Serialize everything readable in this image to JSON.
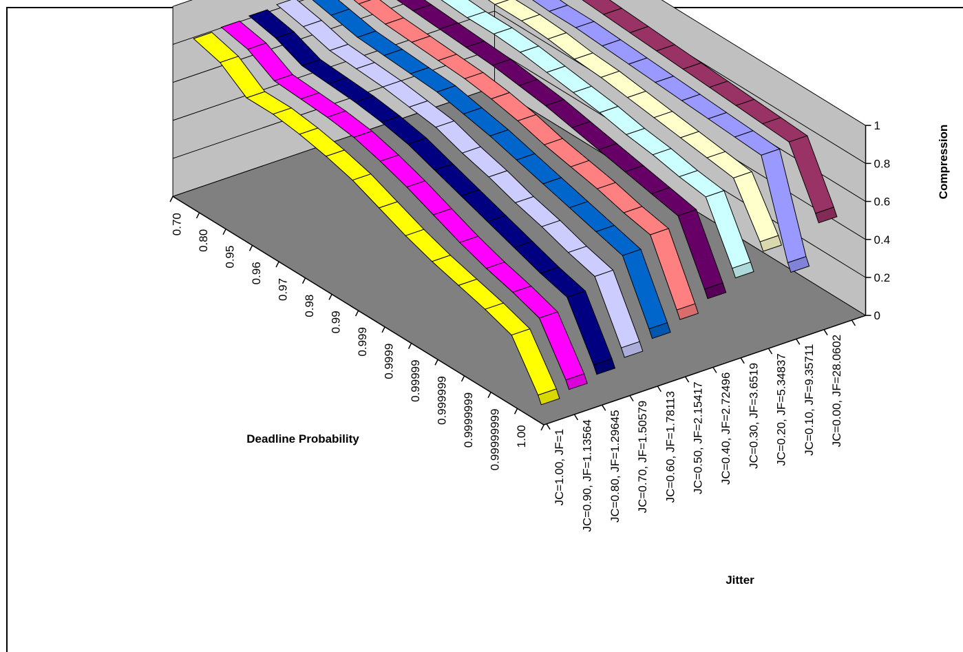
{
  "chart_data": {
    "type": "3d-ribbon-line",
    "xlabel": "Deadline Probability",
    "zlabel": "Jitter",
    "ylabel": "Compression",
    "ylim": [
      0,
      1
    ],
    "yticks": [
      "0",
      "0.2",
      "0.4",
      "0.6",
      "0.8",
      "1"
    ],
    "categories": [
      "0.70",
      "0.80",
      "0.95",
      "0.96",
      "0.97",
      "0.98",
      "0.99",
      "0.999",
      "0.9999",
      "0.99999",
      "0.999999",
      "0.9999999",
      "0.99999999",
      "1.00"
    ],
    "series": [
      {
        "name": "JC=1.00, JF=1",
        "color": "#ffff00",
        "values": [
          0.86,
          0.82,
          0.72,
          0.72,
          0.7,
          0.67,
          0.63,
          0.57,
          0.51,
          0.46,
          0.42,
          0.38,
          0.33,
          0.1
        ]
      },
      {
        "name": "JC=0.90, JF=1.13564",
        "color": "#ff00ff",
        "values": [
          0.87,
          0.84,
          0.76,
          0.75,
          0.74,
          0.72,
          0.68,
          0.63,
          0.57,
          0.51,
          0.46,
          0.42,
          0.37,
          0.13
        ]
      },
      {
        "name": "JC=0.80, JF=1.29645",
        "color": "#000080",
        "values": [
          0.88,
          0.85,
          0.79,
          0.78,
          0.77,
          0.75,
          0.72,
          0.67,
          0.62,
          0.57,
          0.52,
          0.47,
          0.43,
          0.16
        ]
      },
      {
        "name": "JC=0.70, JF=1.50579",
        "color": "#ccccff",
        "values": [
          0.89,
          0.86,
          0.82,
          0.81,
          0.8,
          0.78,
          0.76,
          0.71,
          0.67,
          0.62,
          0.58,
          0.53,
          0.49,
          0.2
        ]
      },
      {
        "name": "JC=0.60, JF=1.78113",
        "color": "#0066cc",
        "values": [
          0.9,
          0.87,
          0.84,
          0.83,
          0.82,
          0.81,
          0.78,
          0.75,
          0.71,
          0.67,
          0.63,
          0.59,
          0.55,
          0.25
        ]
      },
      {
        "name": "JC=0.50, JF=2.15417",
        "color": "#ff8080",
        "values": [
          0.91,
          0.88,
          0.86,
          0.85,
          0.84,
          0.83,
          0.81,
          0.78,
          0.74,
          0.71,
          0.68,
          0.64,
          0.61,
          0.3
        ]
      },
      {
        "name": "JC=0.40, JF=2.72496",
        "color": "#660066",
        "values": [
          0.92,
          0.89,
          0.88,
          0.87,
          0.86,
          0.85,
          0.83,
          0.81,
          0.78,
          0.75,
          0.72,
          0.69,
          0.66,
          0.36
        ]
      },
      {
        "name": "JC=0.30, JF=3.6519",
        "color": "#ccffff",
        "values": [
          0.93,
          0.9,
          0.89,
          0.88,
          0.88,
          0.87,
          0.85,
          0.83,
          0.81,
          0.78,
          0.76,
          0.73,
          0.71,
          0.42
        ]
      },
      {
        "name": "JC=0.20, JF=5.34837",
        "color": "#ffffcc",
        "values": [
          0.94,
          0.92,
          0.91,
          0.9,
          0.9,
          0.89,
          0.87,
          0.86,
          0.84,
          0.82,
          0.8,
          0.78,
          0.76,
          0.51
        ]
      },
      {
        "name": "JC=0.10, JF=9.35711",
        "color": "#9999ff",
        "values": [
          0.95,
          0.93,
          0.92,
          0.91,
          0.9,
          0.9,
          0.89,
          0.88,
          0.87,
          0.86,
          0.85,
          0.84,
          0.83,
          0.35
        ]
      },
      {
        "name": "JC=0.00, JF=28.0602",
        "color": "#993366",
        "values": [
          0.96,
          0.95,
          0.94,
          0.93,
          0.93,
          0.92,
          0.91,
          0.9,
          0.89,
          0.88,
          0.87,
          0.86,
          0.85,
          0.56
        ]
      }
    ],
    "colors": {
      "back_wall": "#c0c0c0",
      "floor": "#808080",
      "gridline": "#000000"
    },
    "grid": true,
    "legend": "none"
  }
}
